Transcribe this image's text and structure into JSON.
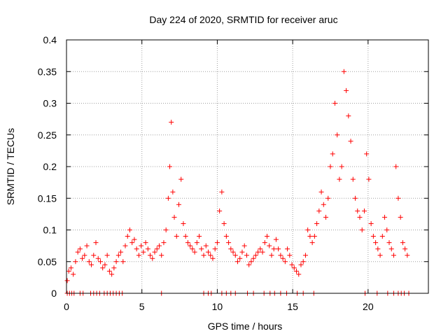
{
  "chart_data": {
    "type": "scatter",
    "title": "Day 224 of 2020, SRMTID for receiver aruc",
    "xlabel": "GPS time / hours",
    "ylabel": "SRMTID / TECUs",
    "xlim": [
      0,
      24
    ],
    "ylim": [
      0,
      0.4
    ],
    "x_ticks": [
      0,
      5,
      10,
      15,
      20
    ],
    "y_ticks": [
      0,
      0.05,
      0.1,
      0.15,
      0.2,
      0.25,
      0.3,
      0.35,
      0.4
    ],
    "grid": true,
    "marker": "+",
    "color": "#ff0000",
    "series": [
      {
        "name": "SRMTID",
        "x": [
          0.05,
          0.15,
          0.3,
          0.45,
          0.6,
          0.75,
          0.9,
          1.05,
          1.2,
          1.35,
          1.5,
          1.65,
          1.8,
          1.95,
          2.1,
          2.25,
          2.4,
          2.55,
          2.7,
          2.85,
          3.0,
          3.15,
          3.3,
          3.45,
          3.6,
          3.75,
          3.9,
          4.05,
          4.2,
          4.35,
          4.5,
          4.65,
          4.8,
          4.95,
          5.1,
          5.25,
          5.4,
          5.55,
          5.7,
          5.85,
          6.0,
          6.15,
          6.3,
          6.45,
          6.6,
          6.75,
          6.85,
          6.95,
          7.05,
          7.15,
          7.3,
          7.45,
          7.6,
          7.75,
          7.9,
          8.05,
          8.2,
          8.35,
          8.5,
          8.65,
          8.8,
          8.95,
          9.1,
          9.25,
          9.4,
          9.55,
          9.7,
          9.85,
          10.0,
          10.15,
          10.3,
          10.45,
          10.6,
          10.75,
          10.9,
          11.05,
          11.2,
          11.35,
          11.5,
          11.65,
          11.8,
          11.95,
          12.1,
          12.25,
          12.4,
          12.55,
          12.7,
          12.85,
          13.0,
          13.15,
          13.3,
          13.45,
          13.6,
          13.75,
          13.9,
          14.05,
          14.2,
          14.35,
          14.5,
          14.65,
          14.8,
          14.95,
          15.1,
          15.25,
          15.4,
          15.55,
          15.7,
          15.85,
          16.0,
          16.15,
          16.3,
          16.45,
          16.6,
          16.75,
          16.9,
          17.05,
          17.2,
          17.35,
          17.5,
          17.65,
          17.8,
          17.95,
          18.1,
          18.25,
          18.4,
          18.55,
          18.7,
          18.85,
          19.0,
          19.15,
          19.3,
          19.45,
          19.6,
          19.75,
          19.9,
          20.05,
          20.2,
          20.35,
          20.5,
          20.65,
          20.8,
          20.95,
          21.1,
          21.25,
          21.4,
          21.55,
          21.7,
          21.85,
          22.0,
          22.15,
          22.3,
          22.45,
          22.6
        ],
        "y": [
          0.02,
          0.035,
          0.04,
          0.03,
          0.05,
          0.065,
          0.07,
          0.055,
          0.06,
          0.075,
          0.05,
          0.045,
          0.06,
          0.08,
          0.055,
          0.05,
          0.04,
          0.045,
          0.06,
          0.035,
          0.03,
          0.04,
          0.05,
          0.06,
          0.065,
          0.05,
          0.075,
          0.09,
          0.1,
          0.08,
          0.085,
          0.07,
          0.06,
          0.075,
          0.065,
          0.08,
          0.07,
          0.06,
          0.055,
          0.065,
          0.07,
          0.075,
          0.06,
          0.08,
          0.1,
          0.15,
          0.2,
          0.27,
          0.16,
          0.12,
          0.09,
          0.14,
          0.18,
          0.11,
          0.09,
          0.08,
          0.075,
          0.07,
          0.065,
          0.08,
          0.09,
          0.07,
          0.06,
          0.075,
          0.065,
          0.06,
          0.055,
          0.07,
          0.08,
          0.13,
          0.16,
          0.11,
          0.09,
          0.08,
          0.07,
          0.065,
          0.06,
          0.05,
          0.055,
          0.065,
          0.075,
          0.06,
          0.045,
          0.05,
          0.055,
          0.06,
          0.065,
          0.07,
          0.065,
          0.08,
          0.09,
          0.075,
          0.06,
          0.07,
          0.085,
          0.07,
          0.06,
          0.055,
          0.05,
          0.07,
          0.06,
          0.045,
          0.04,
          0.035,
          0.03,
          0.045,
          0.05,
          0.06,
          0.1,
          0.09,
          0.08,
          0.09,
          0.11,
          0.13,
          0.16,
          0.14,
          0.12,
          0.15,
          0.2,
          0.22,
          0.3,
          0.25,
          0.18,
          0.2,
          0.35,
          0.32,
          0.28,
          0.24,
          0.18,
          0.15,
          0.13,
          0.12,
          0.1,
          0.13,
          0.22,
          0.18,
          0.11,
          0.09,
          0.08,
          0.07,
          0.06,
          0.09,
          0.12,
          0.1,
          0.08,
          0.07,
          0.06,
          0.2,
          0.15,
          0.12,
          0.08,
          0.07,
          0.06
        ],
        "zero_x": [
          0.05,
          0.2,
          0.35,
          0.5,
          0.9,
          1.1,
          1.6,
          1.8,
          2.0,
          2.2,
          2.5,
          2.7,
          2.9,
          3.1,
          3.3,
          3.5,
          3.7,
          6.3,
          9.1,
          9.4,
          9.6,
          10.3,
          10.6,
          10.9,
          11.2,
          12.0,
          12.4,
          13.1,
          13.5,
          13.8,
          14.2,
          14.6,
          15.3,
          15.7,
          16.4,
          19.8,
          20.6,
          21.3,
          21.7,
          22.0,
          22.2,
          22.4,
          22.7
        ]
      }
    ]
  }
}
